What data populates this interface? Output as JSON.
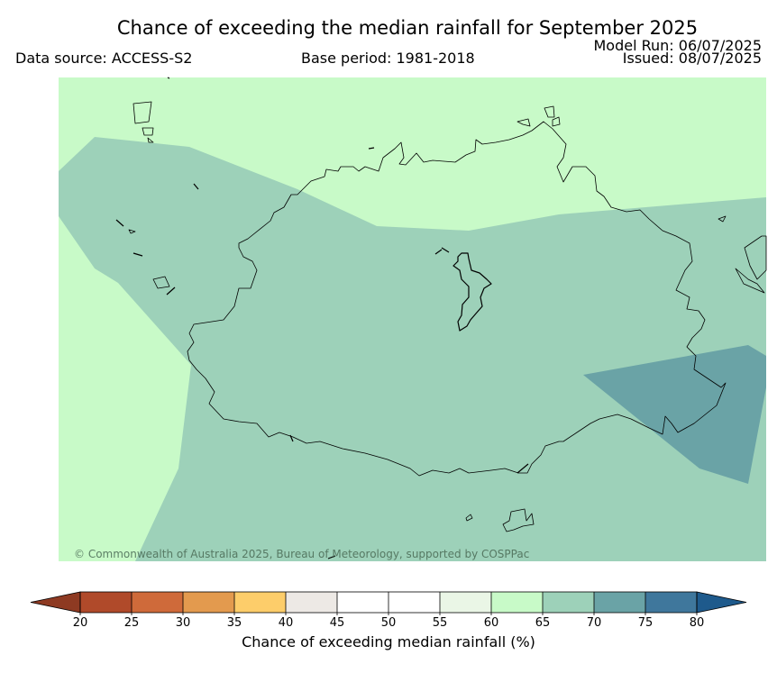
{
  "header": {
    "title": "Chance of exceeding the median rainfall for September 2025",
    "data_source": "Data source: ACCESS-S2",
    "base_period": "Base period: 1981-2018",
    "model_run": "Model Run: 06/07/2025",
    "issued": "Issued: 08/07/2025"
  },
  "map": {
    "copyright": "© Commonwealth of Australia 2025, Bureau of Meteorology, supported by COSPPac",
    "regions": [
      {
        "name": "60-65%",
        "color": "#c8fac8"
      },
      {
        "name": "65-70%",
        "color": "#9dd1b9"
      },
      {
        "name": "70-75%",
        "color": "#6aa3a6"
      }
    ]
  },
  "colorbar": {
    "label": "Chance of exceeding median rainfall (%)",
    "ticks": [
      "20",
      "25",
      "30",
      "35",
      "40",
      "45",
      "50",
      "55",
      "60",
      "65",
      "70",
      "75",
      "80"
    ],
    "lower_extend_color": "#8e3a22",
    "upper_extend_color": "#1e5a8c",
    "segment_colors": [
      "#b04a2a",
      "#cf6a3a",
      "#e39a4e",
      "#fdcd6a",
      "#ede9e5",
      "#ffffff",
      "#ffffff",
      "#eaf6e6",
      "#c8fac8",
      "#9dd1b9",
      "#6aa3a6",
      "#3f779c"
    ]
  }
}
